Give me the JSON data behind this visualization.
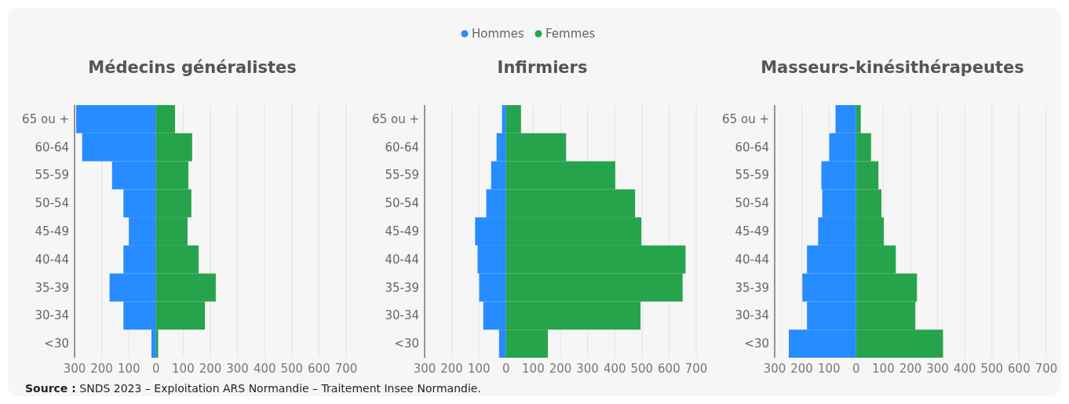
{
  "chart_data": [
    {
      "type": "bar",
      "orientation": "horizontal",
      "stacked": true,
      "title": "Médecins généralistes",
      "categories": [
        "65 ou +",
        "60-64",
        "55-59",
        "50-54",
        "45-49",
        "40-44",
        "35-39",
        "30-34",
        "<30"
      ],
      "series": [
        {
          "name": "Hommes",
          "color": "#268cff",
          "values": [
            -294,
            -272,
            -162,
            -120,
            -100,
            -120,
            -171,
            -120,
            -17
          ]
        },
        {
          "name": "Femmes",
          "color": "#26a44c",
          "values": [
            70,
            133,
            119,
            130,
            116,
            157,
            220,
            180,
            8
          ]
        }
      ],
      "xlim": [
        -300,
        700
      ],
      "xticks": [
        {
          "value": -300,
          "label": "300"
        },
        {
          "value": -200,
          "label": "200"
        },
        {
          "value": -100,
          "label": "100"
        },
        0,
        100,
        200,
        300,
        400,
        500,
        600,
        700
      ],
      "grid": "x",
      "legend": "top",
      "annotations": [
        "Source : SNDS 2023 – Exploitation ARS Normandie – Traitement Insee Normandie."
      ]
    },
    {
      "type": "bar",
      "orientation": "horizontal",
      "stacked": true,
      "title": "Infirmiers",
      "categories": [
        "65 ou +",
        "60-64",
        "55-59",
        "50-54",
        "45-49",
        "40-44",
        "35-39",
        "30-34",
        "<30"
      ],
      "series": [
        {
          "color": "#268cff",
          "values": [
            -15,
            -35,
            -55,
            -73,
            -114,
            -105,
            -99,
            -84,
            -26
          ]
        },
        {
          "color": "#26a44c",
          "values": [
            55,
            221,
            402,
            475,
            498,
            661,
            650,
            495,
            154
          ]
        }
      ],
      "xlim": [
        -300,
        700
      ],
      "xticks": [
        {
          "value": -300,
          "label": "300"
        },
        {
          "value": -200,
          "label": "200"
        },
        {
          "value": -100,
          "label": "100"
        },
        0,
        100,
        200,
        300,
        400,
        500,
        600,
        700
      ],
      "grid": "x"
    },
    {
      "type": "bar",
      "orientation": "horizontal",
      "stacked": true,
      "title": "Masseurs-kinésithérapeutes",
      "categories": [
        "65 ou +",
        "60-64",
        "55-59",
        "50-54",
        "45-49",
        "40-44",
        "35-39",
        "30-34",
        "<30"
      ],
      "series": [
        {
          "color": "#268cff",
          "values": [
            -76,
            -99,
            -128,
            -125,
            -140,
            -181,
            -198,
            -181,
            -248
          ]
        },
        {
          "color": "#26a44c",
          "values": [
            17,
            55,
            82,
            93,
            102,
            146,
            224,
            218,
            320
          ]
        }
      ],
      "xlim": [
        -300,
        700
      ],
      "xticks": [
        {
          "value": -300,
          "label": "300"
        },
        {
          "value": -200,
          "label": "200"
        },
        {
          "value": -100,
          "label": "100"
        },
        0,
        100,
        200,
        300,
        400,
        500,
        600,
        700
      ],
      "grid": "x"
    }
  ]
}
